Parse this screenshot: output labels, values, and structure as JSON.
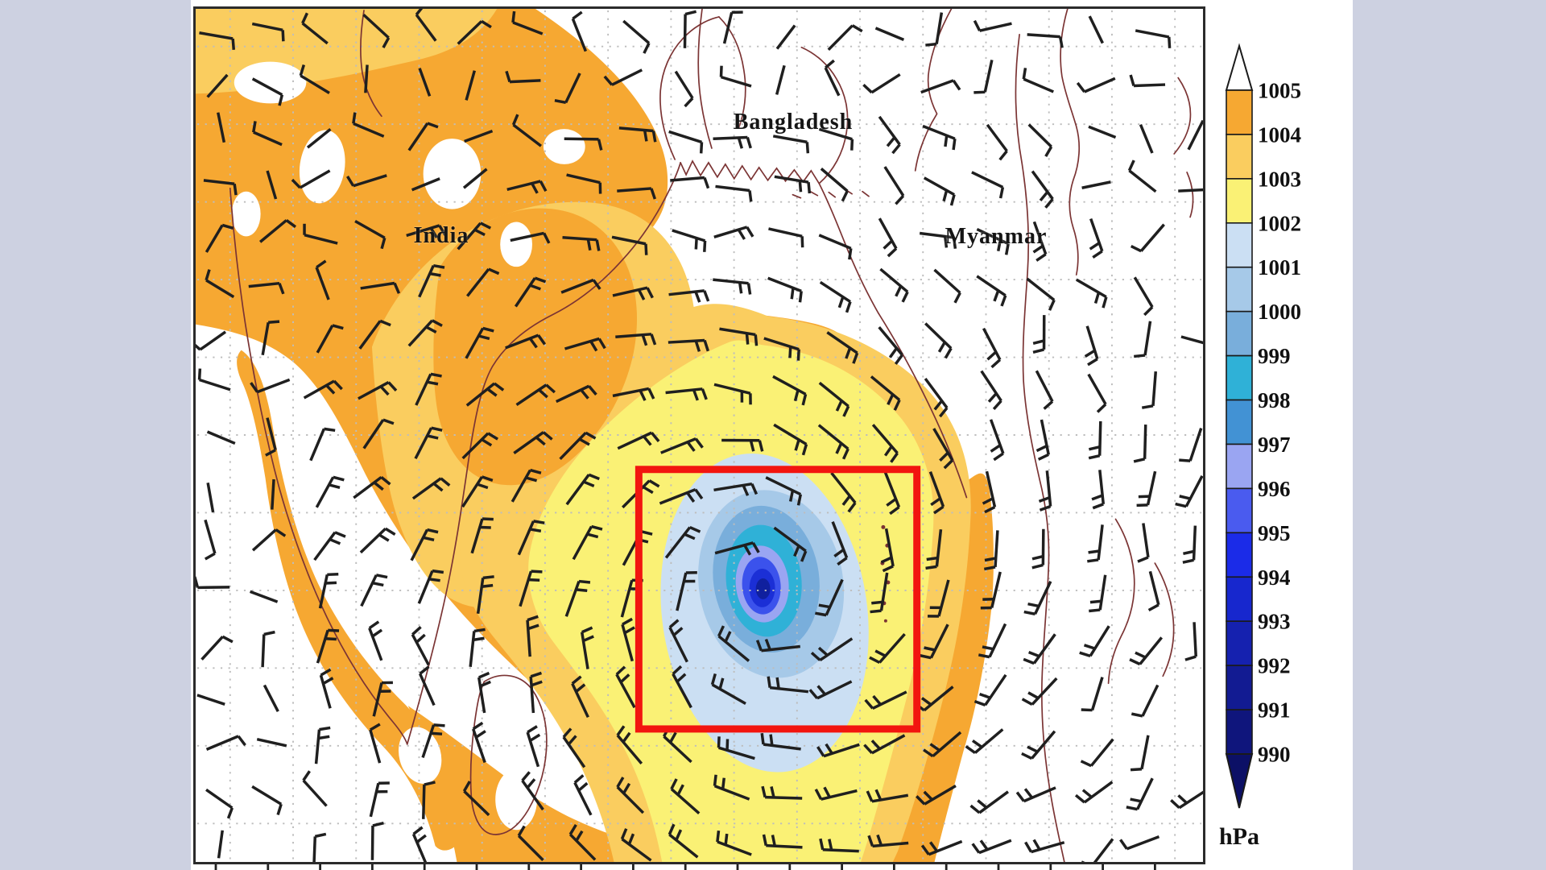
{
  "chart_data": {
    "type": "heatmap",
    "unit": "hPa",
    "colorbar_levels": [
      1005,
      1004,
      1003,
      1002,
      1001,
      1000,
      999,
      998,
      997,
      996,
      995,
      994,
      993,
      992,
      991,
      990
    ],
    "colorbar_segment_colors": [
      "#F6A832",
      "#FACD5F",
      "#FAF175",
      "#CBDFF3",
      "#A6C9E8",
      "#79AEDB",
      "#2FB1D7",
      "#4292D4",
      "#9AA5F2",
      "#4A5BEF",
      "#1B2BE8",
      "#1727CE",
      "#1521AF",
      "#121B92",
      "#0F157C"
    ],
    "above_scale_color": "#FFFFFF",
    "below_scale_color": "#0C1066",
    "region_labels": [
      "India",
      "Bangladesh",
      "Myanmar"
    ],
    "legend_position": "right",
    "grid": "dotted lat-lon grid",
    "annotations": [
      "red rectangle highlighting cyclone low-pressure center over Bay of Bengal, minimum below 990 hPa"
    ]
  },
  "map": {
    "labels": [
      {
        "text": "India"
      },
      {
        "text": "Bangladesh"
      },
      {
        "text": "Myanmar"
      }
    ]
  },
  "colorbar": {
    "unit_label": "hPa",
    "tick_labels": [
      "1005",
      "1004",
      "1003",
      "1002",
      "1001",
      "1000",
      "999",
      "998",
      "997",
      "996",
      "995",
      "994",
      "993",
      "992",
      "991",
      "990"
    ],
    "segment_colors": [
      "#F6A832",
      "#FACD5F",
      "#FAF175",
      "#CBDFF3",
      "#A6C9E8",
      "#79AEDB",
      "#2FB1D7",
      "#4292D4",
      "#9AA5F2",
      "#4A5BEF",
      "#1B2BE8",
      "#1727CE",
      "#1521AF",
      "#121B92",
      "#0F157C"
    ],
    "above_top_color": "#FFFFFF",
    "below_bottom_color": "#0C1066"
  },
  "annotations": {
    "red_box": {
      "color": "#F2150F"
    }
  },
  "colors": {
    "page_background": "#CDD1E1",
    "panel_background": "#FFFFFF",
    "frame": "#2B2B2B",
    "coastline": "#7B3434",
    "gridline": "#BDBDBD",
    "wind_barb": "#1F1F1F",
    "tick": "#222222"
  }
}
